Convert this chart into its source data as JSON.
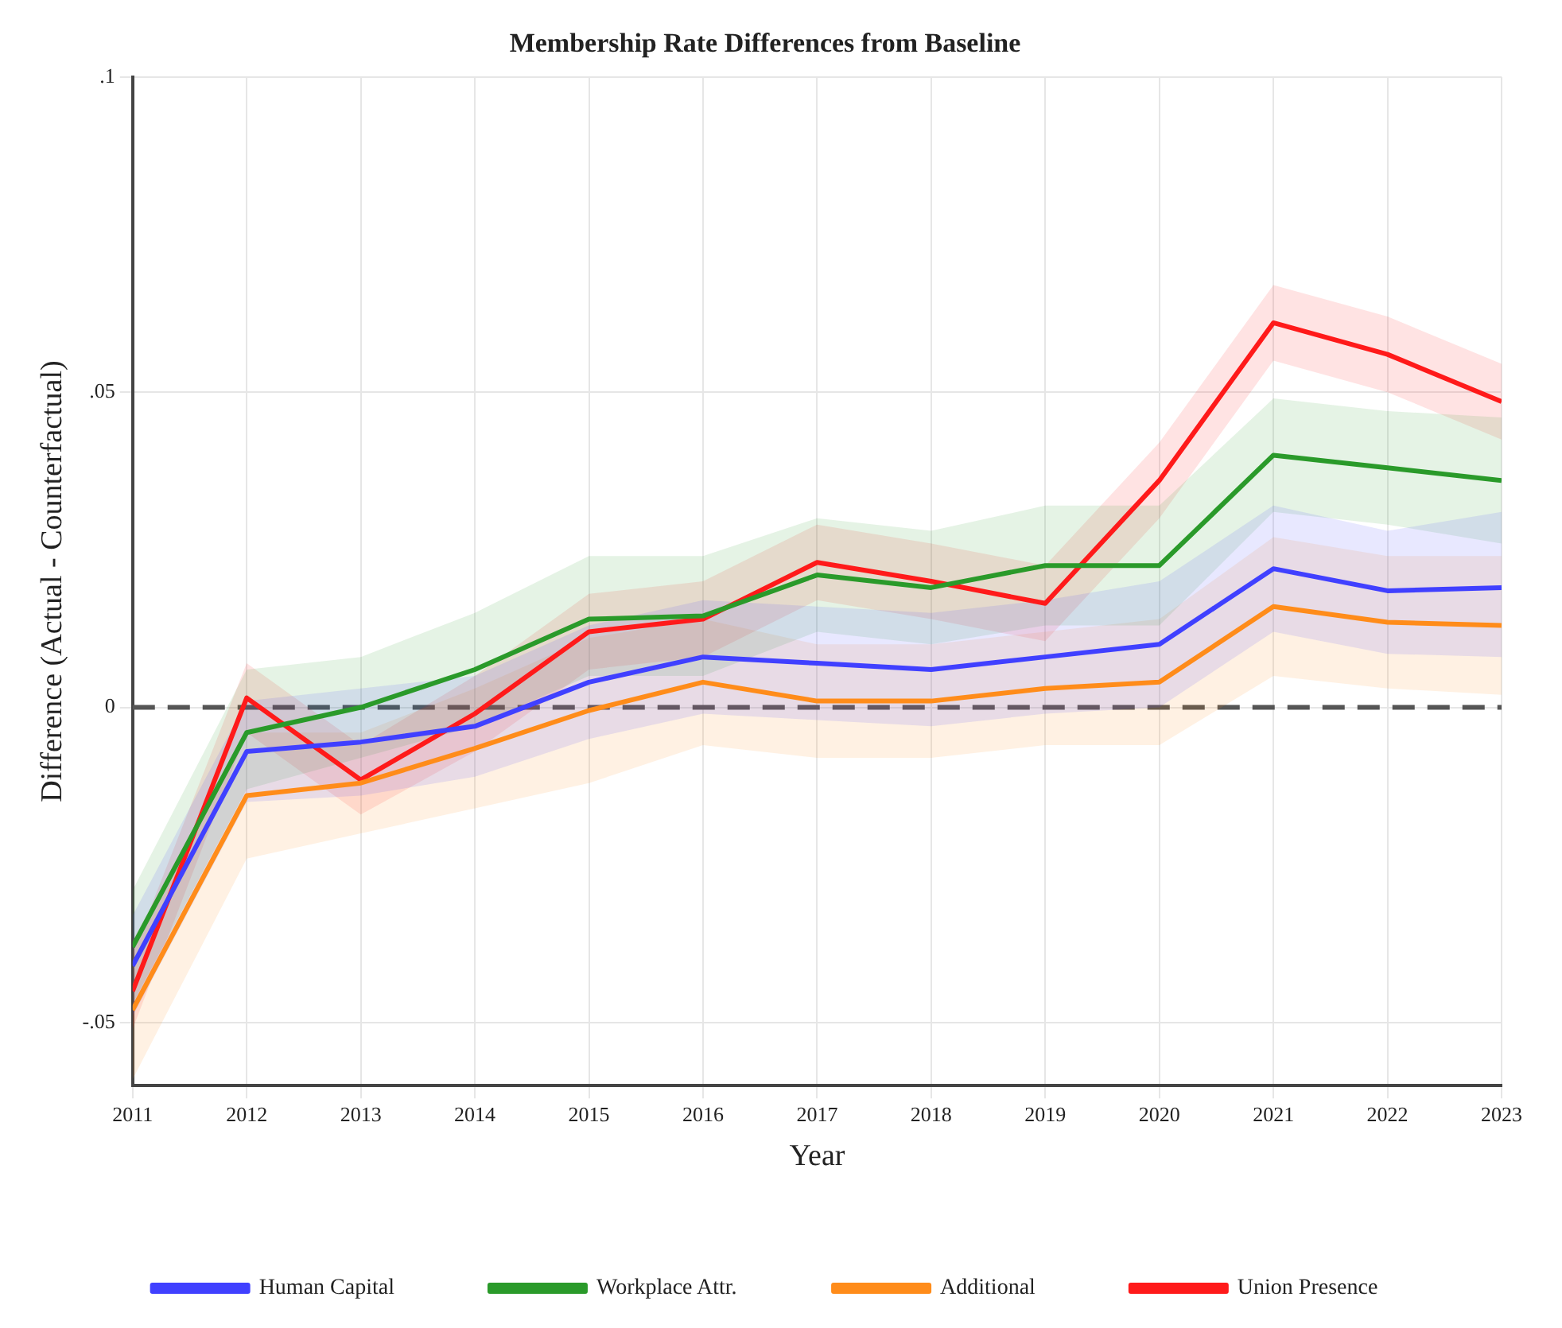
{
  "chart_data": {
    "type": "line",
    "title": "Membership Rate Differences from Baseline",
    "xlabel": "Year",
    "ylabel": "Difference (Actual - Counterfactual)",
    "x": [
      2011,
      2012,
      2013,
      2014,
      2015,
      2016,
      2017,
      2018,
      2019,
      2020,
      2021,
      2022,
      2023
    ],
    "xlim": [
      2011,
      2023
    ],
    "xticks": [
      2011,
      2012,
      2013,
      2014,
      2015,
      2016,
      2017,
      2018,
      2019,
      2020,
      2021,
      2022,
      2023
    ],
    "ylim": [
      -0.06,
      0.1
    ],
    "yticks": [
      {
        "value": -0.05,
        "label": "-.05"
      },
      0,
      {
        "value": 0.05,
        "label": ".05"
      },
      {
        "value": 0.1,
        "label": ".1"
      }
    ],
    "grid": true,
    "legend": "bottom",
    "marker": "none",
    "line_style": "solid",
    "ref_lines": [
      {
        "axis": "y",
        "value": 0,
        "color": "#555555",
        "line_style": "dashed"
      }
    ],
    "series": [
      {
        "name": "Human Capital",
        "color": "#4040ff",
        "values": [
          -0.041,
          -0.007,
          -0.0055,
          -0.003,
          0.004,
          0.008,
          0.007,
          0.006,
          0.008,
          0.01,
          0.022,
          0.0185,
          0.019
        ],
        "lower": [
          -0.049,
          -0.015,
          -0.014,
          -0.011,
          -0.005,
          -0.001,
          -0.002,
          -0.003,
          -0.001,
          0.0,
          0.012,
          0.0085,
          0.008
        ],
        "upper": [
          -0.033,
          0.001,
          0.003,
          0.005,
          0.013,
          0.017,
          0.016,
          0.015,
          0.017,
          0.02,
          0.032,
          0.028,
          0.031
        ]
      },
      {
        "name": "Workplace Attr.",
        "color": "#2a9a2a",
        "values": [
          -0.038,
          -0.004,
          0.0,
          0.006,
          0.014,
          0.0145,
          0.021,
          0.019,
          0.0225,
          0.0225,
          0.04,
          0.038,
          0.036
        ],
        "lower": [
          -0.047,
          -0.013,
          -0.008,
          -0.003,
          0.005,
          0.005,
          0.012,
          0.01,
          0.013,
          0.013,
          0.031,
          0.029,
          0.026
        ],
        "upper": [
          -0.029,
          0.006,
          0.008,
          0.015,
          0.024,
          0.024,
          0.03,
          0.028,
          0.032,
          0.032,
          0.049,
          0.047,
          0.046
        ]
      },
      {
        "name": "Additional",
        "color": "#ff8c1a",
        "values": [
          -0.048,
          -0.014,
          -0.012,
          -0.0065,
          -0.0005,
          0.004,
          0.001,
          0.001,
          0.003,
          0.004,
          0.016,
          0.0135,
          0.013
        ],
        "lower": [
          -0.059,
          -0.024,
          -0.02,
          -0.016,
          -0.012,
          -0.006,
          -0.008,
          -0.008,
          -0.006,
          -0.006,
          0.005,
          0.003,
          0.002
        ],
        "upper": [
          -0.037,
          -0.004,
          -0.004,
          0.003,
          0.011,
          0.014,
          0.01,
          0.01,
          0.012,
          0.014,
          0.027,
          0.024,
          0.024
        ]
      },
      {
        "name": "Union Presence",
        "color": "#ff1a1a",
        "values": [
          -0.045,
          0.0015,
          -0.0115,
          -0.001,
          0.012,
          0.014,
          0.023,
          0.02,
          0.0165,
          0.036,
          0.061,
          0.056,
          0.0485
        ],
        "lower": [
          -0.051,
          -0.004,
          -0.017,
          -0.007,
          0.006,
          0.008,
          0.017,
          0.014,
          0.0105,
          0.03,
          0.055,
          0.05,
          0.0425
        ],
        "upper": [
          -0.039,
          0.007,
          -0.006,
          0.005,
          0.018,
          0.02,
          0.029,
          0.026,
          0.0225,
          0.042,
          0.067,
          0.062,
          0.0545
        ]
      }
    ]
  }
}
